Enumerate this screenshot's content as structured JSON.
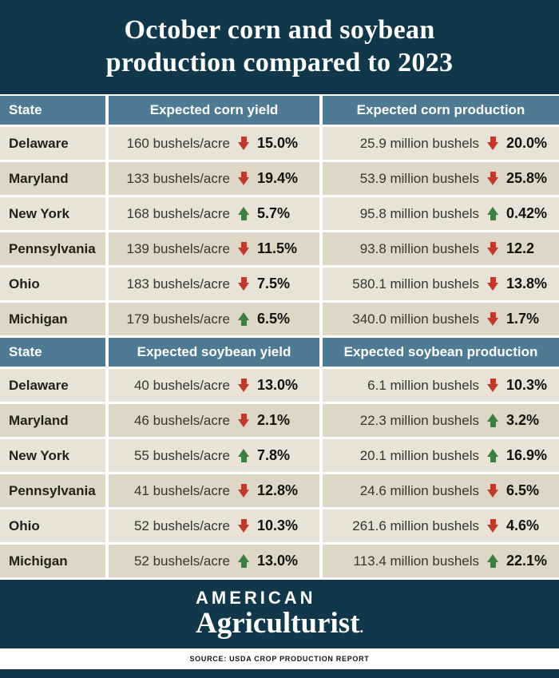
{
  "title": {
    "line1": "October corn and soybean",
    "line2": "production compared to 2023"
  },
  "colors": {
    "band_teal": "#10384a",
    "header_slate": "#4e7b93",
    "row_light": "#e9e3d7",
    "row_dark": "#ded7c8",
    "decrease_red": "#bf3a2b",
    "increase_green": "#3e7e41"
  },
  "chart_data": {
    "type": "table",
    "title": "October corn and soybean production compared to 2023",
    "tables": [
      {
        "section": "corn",
        "headers": {
          "state": "State",
          "yield": "Expected corn yield",
          "production": "Expected corn production"
        },
        "rows": [
          {
            "state": "Delaware",
            "yield_value": "160 bushels/acre",
            "yield_change_dir": "down",
            "yield_change": "15.0%",
            "prod_value": "25.9 million bushels",
            "prod_change_dir": "down",
            "prod_change": "20.0%"
          },
          {
            "state": "Maryland",
            "yield_value": "133 bushels/acre",
            "yield_change_dir": "down",
            "yield_change": "19.4%",
            "prod_value": "53.9 million bushels",
            "prod_change_dir": "down",
            "prod_change": "25.8%"
          },
          {
            "state": "New York",
            "yield_value": "168 bushels/acre",
            "yield_change_dir": "up",
            "yield_change": "5.7%",
            "prod_value": "95.8 million bushels",
            "prod_change_dir": "up",
            "prod_change": "0.42%"
          },
          {
            "state": "Pennsylvania",
            "yield_value": "139 bushels/acre",
            "yield_change_dir": "down",
            "yield_change": "11.5%",
            "prod_value": "93.8 million bushels",
            "prod_change_dir": "down",
            "prod_change": "12.2"
          },
          {
            "state": "Ohio",
            "yield_value": "183 bushels/acre",
            "yield_change_dir": "down",
            "yield_change": "7.5%",
            "prod_value": "580.1 million bushels",
            "prod_change_dir": "down",
            "prod_change": "13.8%"
          },
          {
            "state": "Michigan",
            "yield_value": "179 bushels/acre",
            "yield_change_dir": "up",
            "yield_change": "6.5%",
            "prod_value": "340.0 million bushels",
            "prod_change_dir": "down",
            "prod_change": "1.7%"
          }
        ]
      },
      {
        "section": "soybean",
        "headers": {
          "state": "State",
          "yield": "Expected soybean yield",
          "production": "Expected soybean production"
        },
        "rows": [
          {
            "state": "Delaware",
            "yield_value": "40 bushels/acre",
            "yield_change_dir": "down",
            "yield_change": "13.0%",
            "prod_value": "6.1 million bushels",
            "prod_change_dir": "down",
            "prod_change": "10.3%"
          },
          {
            "state": "Maryland",
            "yield_value": "46 bushels/acre",
            "yield_change_dir": "down",
            "yield_change": "2.1%",
            "prod_value": "22.3 million bushels",
            "prod_change_dir": "up",
            "prod_change": "3.2%"
          },
          {
            "state": "New York",
            "yield_value": "55 bushels/acre",
            "yield_change_dir": "up",
            "yield_change": "7.8%",
            "prod_value": "20.1 million bushels",
            "prod_change_dir": "up",
            "prod_change": "16.9%"
          },
          {
            "state": "Pennsylvania",
            "yield_value": "41 bushels/acre",
            "yield_change_dir": "down",
            "yield_change": "12.8%",
            "prod_value": "24.6 million bushels",
            "prod_change_dir": "down",
            "prod_change": "6.5%"
          },
          {
            "state": "Ohio",
            "yield_value": "52 bushels/acre",
            "yield_change_dir": "down",
            "yield_change": "10.3%",
            "prod_value": "261.6 million bushels",
            "prod_change_dir": "down",
            "prod_change": "4.6%"
          },
          {
            "state": "Michigan",
            "yield_value": "52 bushels/acre",
            "yield_change_dir": "up",
            "yield_change": "13.0%",
            "prod_value": "113.4 million bushels",
            "prod_change_dir": "up",
            "prod_change": "22.1%"
          }
        ]
      }
    ]
  },
  "footer": {
    "brand_line1": "AMERICAN",
    "brand_line2": "Agriculturist",
    "brand_mark": ".",
    "source": "SOURCE: USDA CROP PRODUCTION REPORT"
  }
}
